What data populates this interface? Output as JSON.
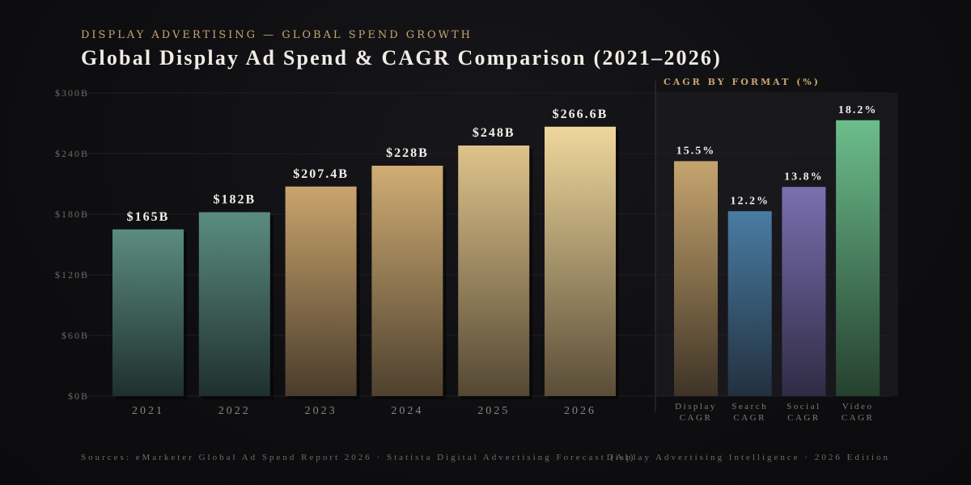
{
  "header": {
    "kicker": "DISPLAY ADVERTISING — GLOBAL SPEND GROWTH",
    "title": "Global Display Ad Spend & CAGR Comparison (2021–2026)"
  },
  "side_panel": {
    "title": "CAGR BY FORMAT (%)"
  },
  "footer": {
    "sources": "Sources: eMarketer Global Ad Spend Report 2026 · Statista Digital Advertising Forecast (AI)",
    "publisher": "Display Advertising Intelligence · 2026 Edition"
  },
  "colors": {
    "background": "#0e0e11",
    "accent_gold": "#c9a46e",
    "teal_bar": "#4f7f74",
    "gold_bar": "#c9a46e",
    "display_cagr": "#c6a46f",
    "search_cagr": "#4a7ca3",
    "social_cagr": "#7a6fb0",
    "video_cagr": "#6cbd8c"
  },
  "chart_data": [
    {
      "type": "bar",
      "title": "",
      "xlabel": "",
      "ylabel": "",
      "categories": [
        "2021",
        "2022",
        "2023",
        "2024",
        "2025",
        "2026"
      ],
      "values": [
        165,
        182,
        207.4,
        228,
        248,
        266.6
      ],
      "value_labels": [
        "$165B",
        "$182B",
        "$207.4B",
        "$228B",
        "$248B",
        "$266.6B"
      ],
      "units": "$B",
      "ylim": [
        0,
        300
      ],
      "yticks": [
        0,
        60,
        120,
        180,
        240,
        300
      ],
      "ytick_labels": [
        "$0B",
        "$60B",
        "$120B",
        "$180B",
        "$240B",
        "$300B"
      ],
      "grid": true
    },
    {
      "type": "bar",
      "title": "CAGR BY FORMAT (%)",
      "categories": [
        [
          "Display",
          "CAGR"
        ],
        [
          "Search",
          "CAGR"
        ],
        [
          "Social",
          "CAGR"
        ],
        [
          "Video",
          "CAGR"
        ]
      ],
      "values": [
        15.5,
        12.2,
        13.8,
        18.2
      ],
      "value_labels": [
        "15.5%",
        "12.2%",
        "13.8%",
        "18.2%"
      ],
      "ylim": [
        0,
        20
      ],
      "grid": true
    }
  ]
}
